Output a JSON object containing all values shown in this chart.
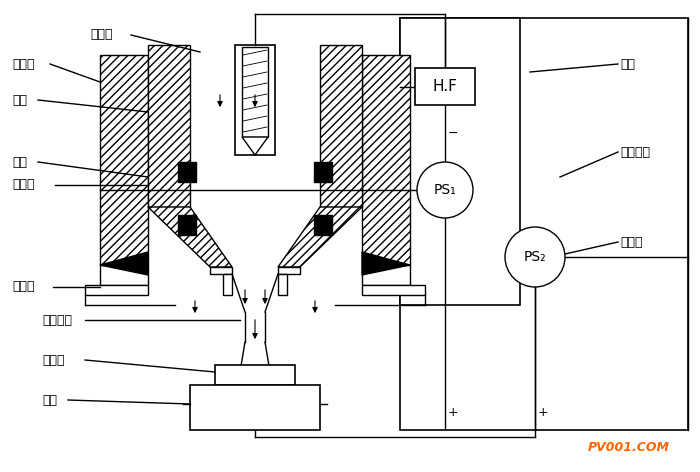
{
  "bg_color": "#ffffff",
  "labels": {
    "tungsten": "钨电极",
    "ion_gas": "离子气",
    "powder": "粉末",
    "nozzle": "喷嘴",
    "cooling": "冷却水",
    "shield": "屏蔽气",
    "plasma": "等离子体",
    "spray_layer": "喷焊层",
    "base": "基材",
    "hf_label": "高频",
    "aux_power": "辅助电源",
    "main_power": "主电源",
    "hf_box": "H.F",
    "ps1": "PS₁",
    "ps2": "PS₂"
  },
  "watermark": "PV001.COM",
  "watermark_color": "#ff6600"
}
